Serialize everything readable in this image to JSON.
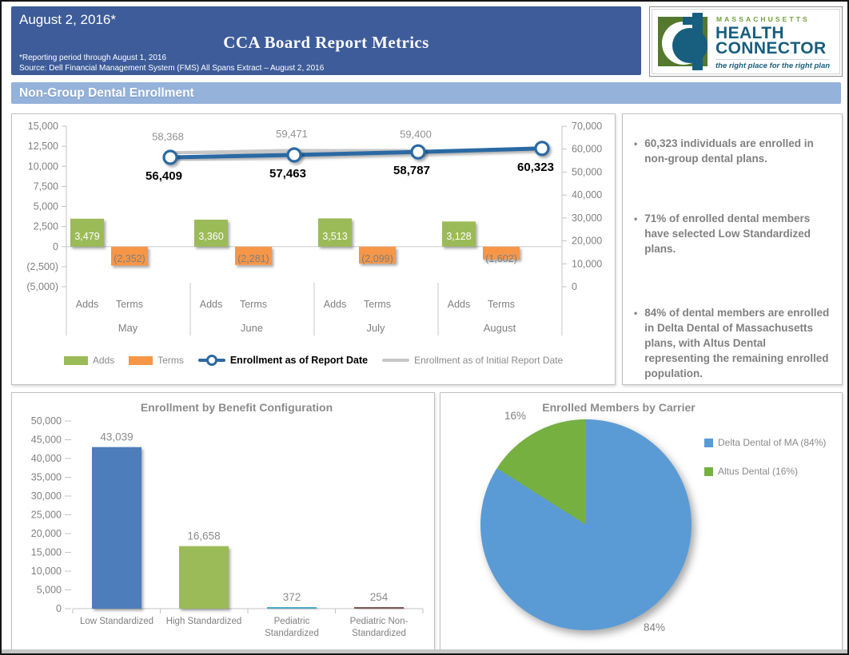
{
  "header": {
    "date": "August 2, 2016*",
    "title": "CCA Board Report Metrics",
    "footnote1": "*Reporting period through August 1, 2016",
    "footnote2": "Source: Dell Financial Management System (FMS) All Spans Extract – August 2, 2016"
  },
  "logo": {
    "region": "MASSACHUSETTS",
    "name_line1": "HEALTH",
    "name_line2": "CONNECTOR",
    "tagline": "the right place for the right plan",
    "green": "#54792c",
    "teal": "#175e7f"
  },
  "section": {
    "title": "Non-Group Dental Enrollment"
  },
  "insights": {
    "bullet_char": "•",
    "bullets": [
      "60,323 individuals are enrolled in non-group dental plans.",
      "71% of enrolled dental members have selected Low Standardized plans.",
      "84% of dental members are enrolled in Delta Dental of Massachusetts plans, with Altus Dental representing the remaining enrolled population."
    ]
  },
  "colors": {
    "header_blue": "#3d5c99",
    "section_blue": "#94b2da",
    "axis_gray": "#c3c3c3",
    "text_gray": "#808080"
  },
  "chart_data": [
    {
      "type": "combo-bar-line",
      "categories": [
        "May",
        "June",
        "July",
        "August"
      ],
      "sub_categories": [
        "Adds",
        "Terms"
      ],
      "series": [
        {
          "name": "Adds",
          "type": "bar",
          "color": "#9bbb59",
          "values": [
            3479,
            3360,
            3513,
            3128
          ],
          "labels": [
            "3,479",
            "3,360",
            "3,513",
            "3,128"
          ]
        },
        {
          "name": "Terms",
          "type": "bar",
          "color": "#f79646",
          "values": [
            -2352,
            -2281,
            -2099,
            -1602
          ],
          "labels": [
            "(2,352)",
            "(2,281)",
            "(2,099)",
            "(1,602)"
          ]
        },
        {
          "name": "Enrollment as of Report Date",
          "type": "line",
          "axis": "right",
          "color": "#2b69a3",
          "values": [
            56409,
            57463,
            58787,
            60323
          ],
          "labels": [
            "56,409",
            "57,463",
            "58,787",
            "60,323"
          ]
        },
        {
          "name": "Enrollment as of Initial Report Date",
          "type": "line",
          "axis": "right",
          "color": "#c7c7c7",
          "values": [
            58368,
            59471,
            59400,
            null
          ],
          "labels": [
            "58,368",
            "59,471",
            "59,400",
            ""
          ]
        }
      ],
      "left_axis": {
        "min": -5000,
        "max": 15000,
        "step": 2500,
        "ticks": [
          "15,000",
          "12,500",
          "10,000",
          "7,500",
          "5,000",
          "2,500",
          "0",
          "(2,500)",
          "(5,000)"
        ]
      },
      "right_axis": {
        "min": 0,
        "max": 70000,
        "step": 10000,
        "ticks": [
          "70,000",
          "60,000",
          "50,000",
          "40,000",
          "30,000",
          "20,000",
          "10,000",
          "0"
        ]
      },
      "legend_position": "bottom",
      "grid": "zero-line-only"
    },
    {
      "type": "bar",
      "title": "Enrollment by Benefit Configuration",
      "categories": [
        "Low Standardized",
        "High Standardized",
        "Pediatric Standardized",
        "Pediatric Non-Standardized"
      ],
      "category_lines": [
        [
          "Low Standardized"
        ],
        [
          "High Standardized"
        ],
        [
          "Pediatric",
          "Standardized"
        ],
        [
          "Pediatric Non-",
          "Standardized"
        ]
      ],
      "values": [
        43039,
        16658,
        372,
        254
      ],
      "labels": [
        "43,039",
        "16,658",
        "372",
        "254"
      ],
      "colors": [
        "#4d7ebb",
        "#9bbb59",
        "#4bacc6",
        "#7d5a5a"
      ],
      "xlabel": "",
      "ylabel": "",
      "ylim": [
        0,
        50000
      ],
      "ytick_step": 5000,
      "yticks": [
        "0",
        "5,000",
        "10,000",
        "15,000",
        "20,000",
        "25,000",
        "30,000",
        "35,000",
        "40,000",
        "45,000",
        "50,000"
      ],
      "grid": "off"
    },
    {
      "type": "pie",
      "title": "Enrolled Members by Carrier",
      "slices": [
        {
          "label": "Delta Dental of MA (84%)",
          "pct": 84,
          "color": "#5b9bd5",
          "data_label": "84%"
        },
        {
          "label": "Altus Dental (16%)",
          "pct": 16,
          "color": "#76b041",
          "data_label": "16%"
        }
      ],
      "legend_position": "right"
    }
  ]
}
